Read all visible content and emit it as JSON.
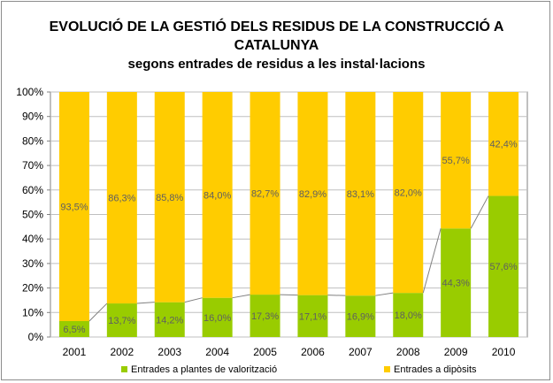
{
  "title_line1": "EVOLUCIÓ DE LA GESTIÓ DELS RESIDUS DE LA CONSTRUCCIÓ A",
  "title_line2": "CATALUNYA",
  "subtitle": "segons entrades de residus a les instal·lacions",
  "colors": {
    "valoritzacio": "#99cc00",
    "diposits": "#ffcc00",
    "line": "#808080",
    "grid": "#bfbfbf"
  },
  "chart_data": {
    "type": "bar",
    "stacked": true,
    "categories": [
      "2001",
      "2002",
      "2003",
      "2004",
      "2005",
      "2006",
      "2007",
      "2008",
      "2009",
      "2010"
    ],
    "series": [
      {
        "name": "Entrades a plantes de valorització",
        "values": [
          6.5,
          13.7,
          14.2,
          16.0,
          17.3,
          17.1,
          16.9,
          18.0,
          44.3,
          57.6
        ],
        "labels": [
          "6,5%",
          "13,7%",
          "14,2%",
          "16,0%",
          "17,3%",
          "17,1%",
          "16,9%",
          "18,0%",
          "44,3%",
          "57,6%"
        ]
      },
      {
        "name": "Entrades a dipòsits",
        "values": [
          93.5,
          86.3,
          85.8,
          84.0,
          82.7,
          82.9,
          83.1,
          82.0,
          55.7,
          42.4
        ],
        "labels": [
          "93,5%",
          "86,3%",
          "85,8%",
          "84,0%",
          "82,7%",
          "82,9%",
          "83,1%",
          "82,0%",
          "55,7%",
          "42,4%"
        ]
      }
    ],
    "yticks": [
      "0%",
      "10%",
      "20%",
      "30%",
      "40%",
      "50%",
      "60%",
      "70%",
      "80%",
      "90%",
      "100%"
    ],
    "ylim": [
      0,
      100
    ],
    "grid": true,
    "legend": "bottom"
  }
}
